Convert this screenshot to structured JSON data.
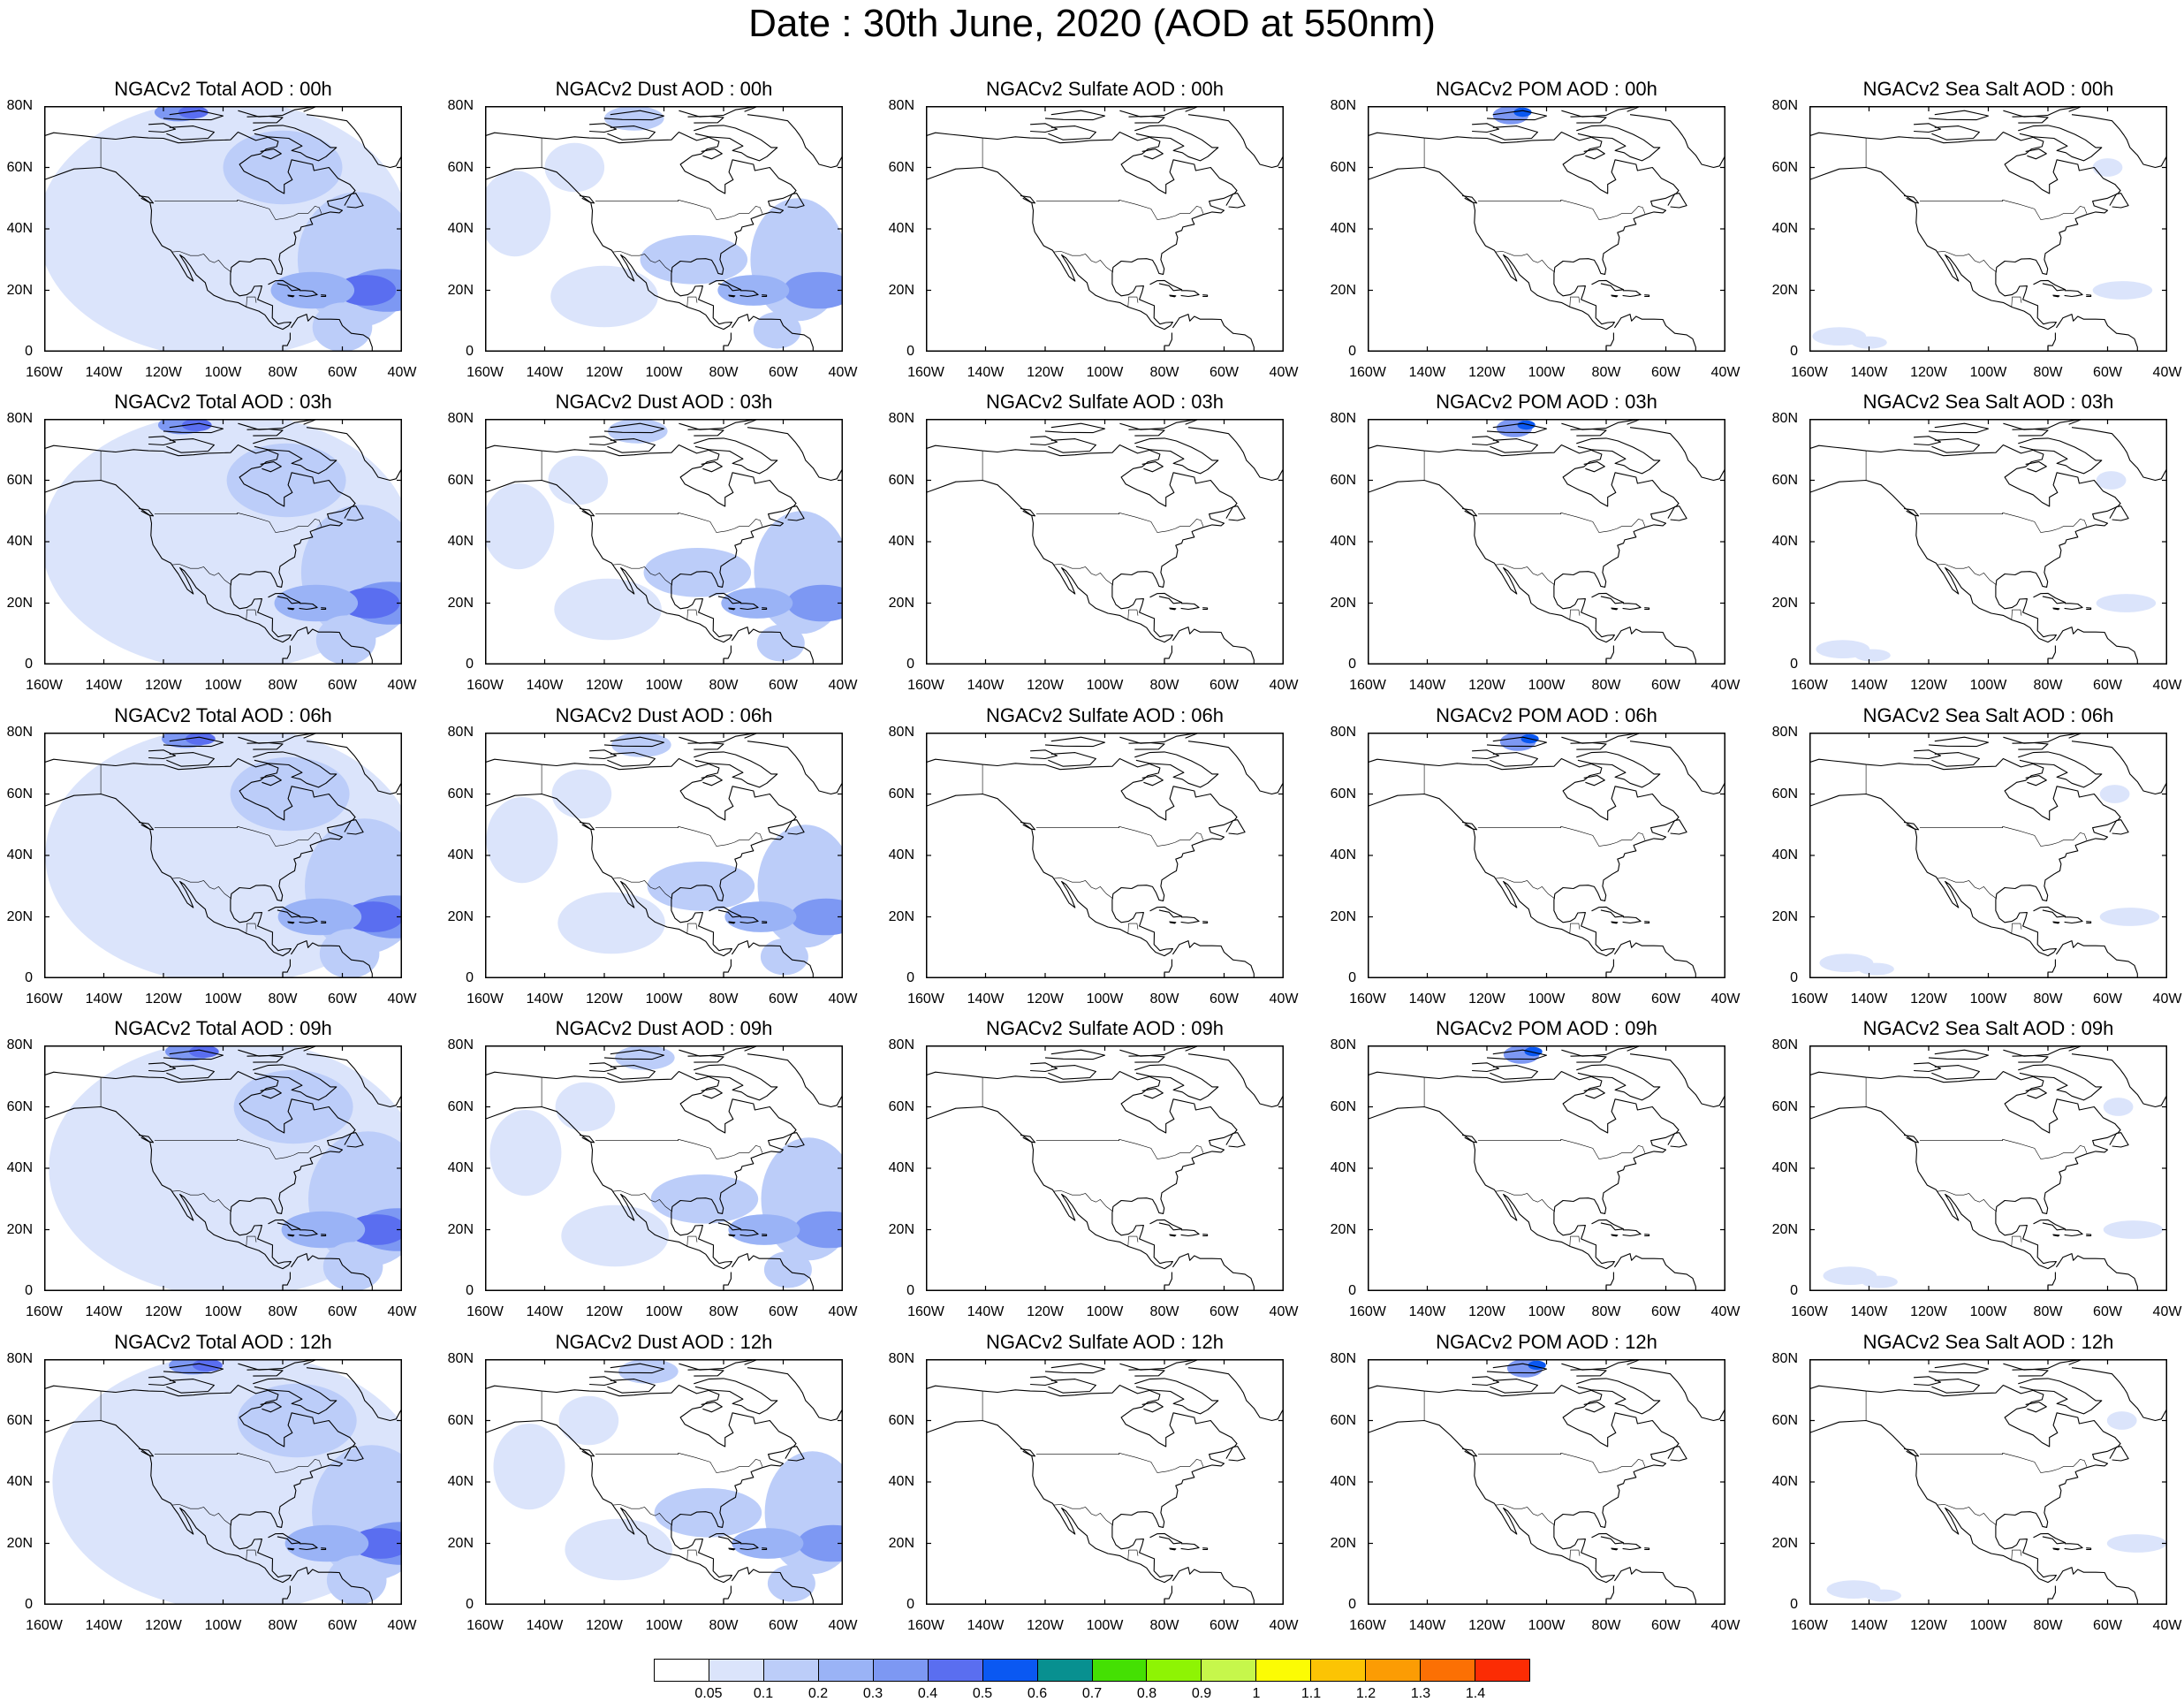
{
  "title": "Date : 30th June, 2020 (AOD at 550nm)",
  "panel_titles": [
    [
      "NGACv2 Total AOD : 00h",
      "NGACv2 Dust AOD : 00h",
      "NGACv2 Sulfate AOD : 00h",
      "NGACv2 POM AOD : 00h",
      "NGACv2 Sea Salt AOD : 00h"
    ],
    [
      "NGACv2 Total AOD : 03h",
      "NGACv2 Dust AOD : 03h",
      "NGACv2 Sulfate AOD : 03h",
      "NGACv2 POM AOD : 03h",
      "NGACv2 Sea Salt AOD : 03h"
    ],
    [
      "NGACv2 Total AOD : 06h",
      "NGACv2 Dust AOD : 06h",
      "NGACv2 Sulfate AOD : 06h",
      "NGACv2 POM AOD : 06h",
      "NGACv2 Sea Salt AOD : 06h"
    ],
    [
      "NGACv2 Total AOD : 09h",
      "NGACv2 Dust AOD : 09h",
      "NGACv2 Sulfate AOD : 09h",
      "NGACv2 POM AOD : 09h",
      "NGACv2 Sea Salt  AOD : 09h"
    ],
    [
      "NGACv2 Total AOD  : 12h",
      "NGACv2 Dust AOD : 12h",
      "NGACv2 Sulfate AOD : 12h",
      "NGACv2 POM  AOD : 12h",
      "NGACv2 Sea Salt  AOD : 12h"
    ]
  ],
  "y_ticks": [
    "80N",
    "60N",
    "40N",
    "20N",
    "0"
  ],
  "x_ticks": [
    "160W",
    "140W",
    "120W",
    "100W",
    "80W",
    "60W",
    "40W"
  ],
  "colorbar": {
    "labels": [
      "0.05",
      "0.1",
      "0.2",
      "0.3",
      "0.4",
      "0.5",
      "0.6",
      "0.7",
      "0.8",
      "0.9",
      "1",
      "1.1",
      "1.2",
      "1.3",
      "1.4"
    ],
    "colors": [
      "#ffffff",
      "#dbe4fb",
      "#bccdf9",
      "#9ab3f6",
      "#7d98f3",
      "#5a6ef0",
      "#0a58f2",
      "#089090",
      "#44e003",
      "#8ef404",
      "#c6f74b",
      "#fcfc04",
      "#fcc404",
      "#fc9c04",
      "#fc7004",
      "#fc2c04"
    ]
  },
  "map": {
    "region": "North America",
    "lon_range": [
      "160W",
      "40W"
    ],
    "lat_range": [
      "0",
      "80N"
    ],
    "aerosol_fields": [
      "Total AOD",
      "Dust AOD",
      "Sulfate AOD",
      "POM AOD",
      "Sea Salt AOD"
    ],
    "forecast_hours": [
      "00h",
      "03h",
      "06h",
      "09h",
      "12h"
    ]
  }
}
